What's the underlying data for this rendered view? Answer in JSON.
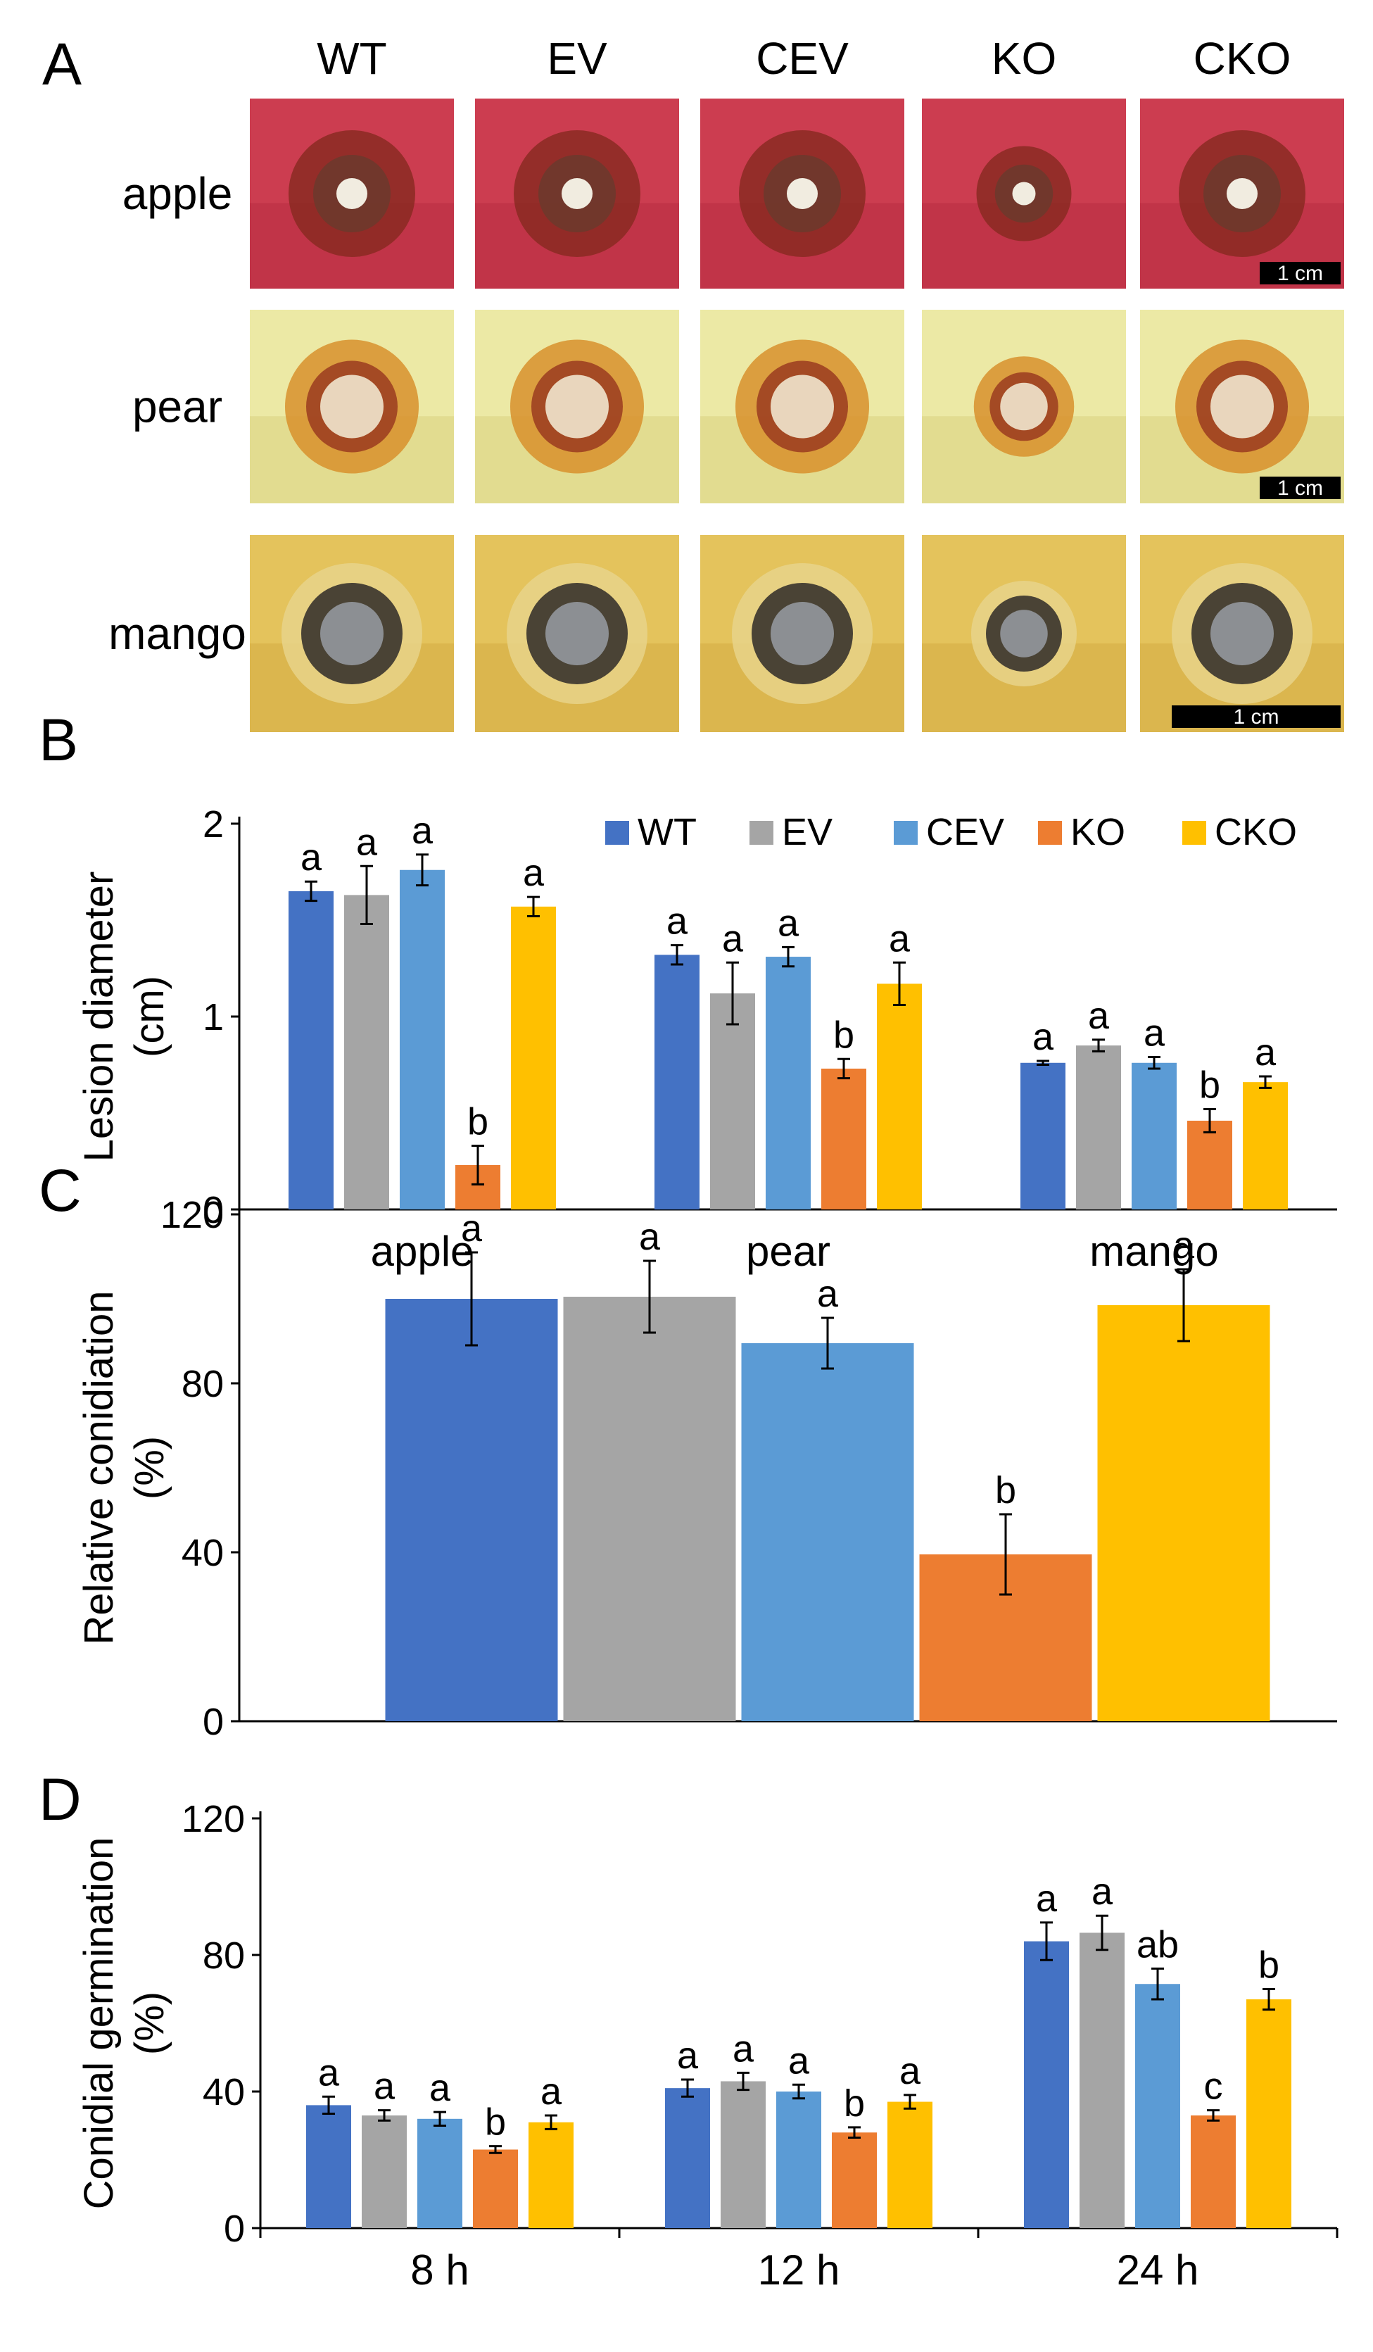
{
  "panel_labels": [
    "A",
    "B",
    "C",
    "D"
  ],
  "photo_panel": {
    "strains": [
      "WT",
      "EV",
      "CEV",
      "KO",
      "CKO"
    ],
    "fruits": [
      "apple",
      "pear",
      "mango"
    ],
    "scale_bar_label": "1 cm"
  },
  "colors": {
    "WT": "#4472c4",
    "EV": "#a5a5a5",
    "CEV": "#5b9bd5",
    "KO": "#ed7d31",
    "CKO": "#ffc000"
  },
  "chart_data": [
    {
      "id": "B",
      "type": "bar",
      "ylabel": "Lesion diameter (cm)",
      "ylabel_lines": [
        "Lesion diameter",
        "(cm)"
      ],
      "ylim": [
        0,
        2
      ],
      "yticks": [
        0,
        1,
        2
      ],
      "categories": [
        "apple",
        "pear",
        "mango"
      ],
      "legend": [
        "WT",
        "EV",
        "CEV",
        "KO",
        "CKO"
      ],
      "series": [
        {
          "name": "WT",
          "values": [
            1.65,
            1.32,
            0.76
          ],
          "errors": [
            0.05,
            0.05,
            0.01
          ],
          "letters": [
            "a",
            "a",
            "a"
          ]
        },
        {
          "name": "EV",
          "values": [
            1.63,
            1.12,
            0.85
          ],
          "errors": [
            0.15,
            0.16,
            0.03
          ],
          "letters": [
            "a",
            "a",
            "a"
          ]
        },
        {
          "name": "CEV",
          "values": [
            1.76,
            1.31,
            0.76
          ],
          "errors": [
            0.08,
            0.05,
            0.03
          ],
          "letters": [
            "a",
            "a",
            "a"
          ]
        },
        {
          "name": "KO",
          "values": [
            0.23,
            0.73,
            0.46
          ],
          "errors": [
            0.1,
            0.05,
            0.06
          ],
          "letters": [
            "b",
            "b",
            "b"
          ]
        },
        {
          "name": "CKO",
          "values": [
            1.57,
            1.17,
            0.66
          ],
          "errors": [
            0.05,
            0.11,
            0.03
          ],
          "letters": [
            "a",
            "a",
            "a"
          ]
        }
      ]
    },
    {
      "id": "C",
      "type": "bar",
      "ylabel": "Relative conidiation (%)",
      "ylabel_lines": [
        "Relative conidiation",
        "(%)"
      ],
      "ylim": [
        0,
        120
      ],
      "yticks": [
        0,
        40,
        80,
        120
      ],
      "categories": [
        "WT",
        "EV",
        "CEV",
        "KO",
        "CKO"
      ],
      "values": [
        100,
        100.5,
        89.5,
        39.5,
        98.5
      ],
      "errors": [
        11,
        8.5,
        6,
        9.5,
        8.5
      ],
      "letters": [
        "a",
        "a",
        "a",
        "b",
        "a"
      ]
    },
    {
      "id": "D",
      "type": "bar",
      "ylabel": "Conidial germination (%)",
      "ylabel_lines": [
        "Conidial germination",
        "(%)"
      ],
      "ylim": [
        0,
        120
      ],
      "yticks": [
        0,
        40,
        80,
        120
      ],
      "categories": [
        "8 h",
        "12 h",
        "24 h"
      ],
      "series": [
        {
          "name": "WT",
          "values": [
            36,
            41,
            84
          ],
          "errors": [
            2.5,
            2.5,
            5.5
          ],
          "letters": [
            "a",
            "a",
            "a"
          ]
        },
        {
          "name": "EV",
          "values": [
            33,
            43,
            86.5
          ],
          "errors": [
            1.5,
            2.5,
            5
          ],
          "letters": [
            "a",
            "a",
            "a"
          ]
        },
        {
          "name": "CEV",
          "values": [
            32,
            40,
            71.5
          ],
          "errors": [
            2,
            2,
            4.5
          ],
          "letters": [
            "a",
            "a",
            "ab"
          ]
        },
        {
          "name": "KO",
          "values": [
            23,
            28,
            33
          ],
          "errors": [
            1,
            1.5,
            1.5
          ],
          "letters": [
            "b",
            "b",
            "c"
          ]
        },
        {
          "name": "CKO",
          "values": [
            31,
            37,
            67
          ],
          "errors": [
            2,
            2,
            3
          ],
          "letters": [
            "a",
            "a",
            "b"
          ]
        }
      ]
    }
  ]
}
